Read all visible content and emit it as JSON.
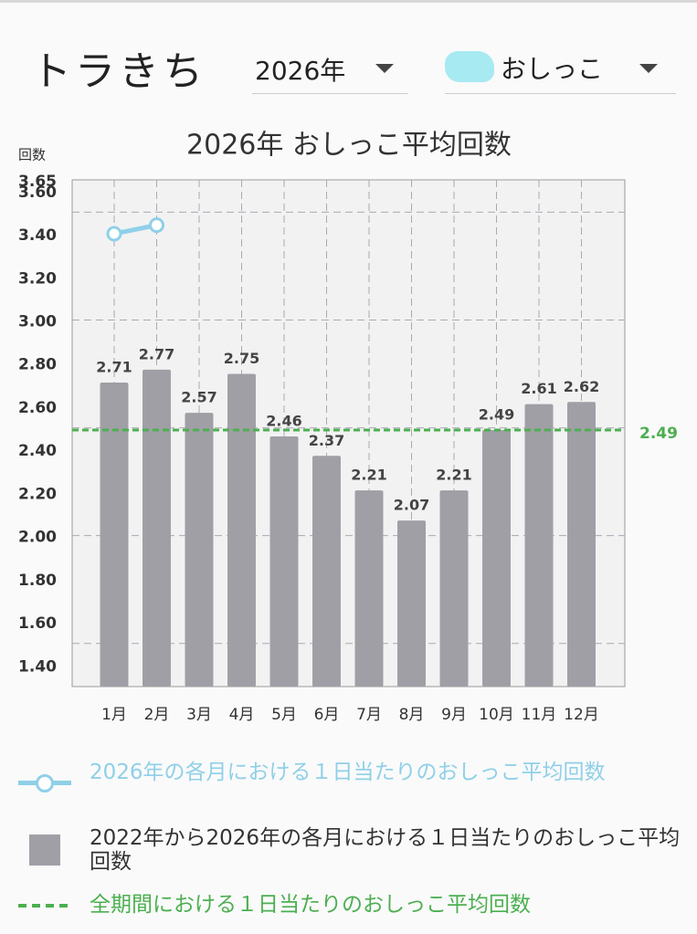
{
  "header": {
    "app_name": "トラきち",
    "year_select": "2026年",
    "category_select": "おしっこ"
  },
  "chart_data": {
    "type": "bar",
    "title": "2026年 おしっこ平均回数",
    "y_label": "回数",
    "categories": [
      "1月",
      "2月",
      "3月",
      "4月",
      "5月",
      "6月",
      "7月",
      "8月",
      "9月",
      "10月",
      "11月",
      "12月"
    ],
    "series": [
      {
        "name": "2026年の各月における１日当たりのおしっこ平均回数",
        "type": "line",
        "color": "#8fd0e8",
        "values": [
          3.4,
          3.44,
          null,
          null,
          null,
          null,
          null,
          null,
          null,
          null,
          null,
          null
        ]
      },
      {
        "name": "2022年から2026年の各月における１日当たりのおしっこ平均回数",
        "type": "bar",
        "color": "#a19fa6",
        "values": [
          2.71,
          2.77,
          2.57,
          2.75,
          2.46,
          2.37,
          2.21,
          2.07,
          2.21,
          2.49,
          2.61,
          2.62
        ]
      }
    ],
    "reference_line": {
      "name": "全期間における１日当たりのおしっこ平均回数",
      "value": 2.49,
      "color": "#4caf50"
    },
    "ylim": [
      1.3,
      3.65
    ],
    "yticks": [
      {
        "value": 1.4,
        "label": "1.40"
      },
      {
        "value": 1.6,
        "label": "1.60"
      },
      {
        "value": 1.8,
        "label": "1.80"
      },
      {
        "value": 2.0,
        "label": "2.00"
      },
      {
        "value": 2.2,
        "label": "2.20"
      },
      {
        "value": 2.4,
        "label": "2.40"
      },
      {
        "value": 2.6,
        "label": "2.60"
      },
      {
        "value": 2.8,
        "label": "2.80"
      },
      {
        "value": 3.0,
        "label": "3.00"
      },
      {
        "value": 3.2,
        "label": "3.20"
      },
      {
        "value": 3.4,
        "label": "3.40"
      },
      {
        "value": 3.6,
        "label": "3.60"
      },
      {
        "value": 3.65,
        "label": "3.65"
      }
    ],
    "grid_lines": [
      1.5,
      2.0,
      2.5,
      3.0,
      3.5
    ],
    "grid": true
  }
}
